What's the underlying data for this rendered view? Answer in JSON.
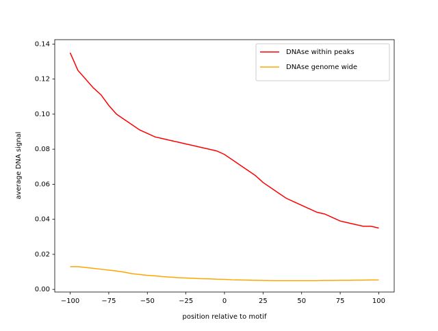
{
  "chart_data": {
    "type": "line",
    "xlabel": "position relative to motif",
    "ylabel": "average DNA signal",
    "x": [
      -100,
      -95,
      -90,
      -85,
      -80,
      -75,
      -70,
      -65,
      -60,
      -55,
      -50,
      -45,
      -40,
      -35,
      -30,
      -25,
      -20,
      -15,
      -10,
      -5,
      0,
      5,
      10,
      15,
      20,
      25,
      30,
      35,
      40,
      45,
      50,
      55,
      60,
      65,
      70,
      75,
      80,
      85,
      90,
      95,
      100
    ],
    "series": [
      {
        "name": "DNAse within peaks",
        "color": "#ff0000",
        "values": [
          0.135,
          0.125,
          0.12,
          0.115,
          0.111,
          0.105,
          0.1,
          0.097,
          0.094,
          0.091,
          0.089,
          0.087,
          0.086,
          0.085,
          0.084,
          0.083,
          0.082,
          0.081,
          0.08,
          0.079,
          0.077,
          0.074,
          0.071,
          0.068,
          0.065,
          0.061,
          0.058,
          0.055,
          0.052,
          0.05,
          0.048,
          0.046,
          0.044,
          0.043,
          0.041,
          0.039,
          0.038,
          0.037,
          0.036,
          0.036,
          0.035
        ]
      },
      {
        "name": "DNAse genome wide",
        "color": "#ffa500",
        "values": [
          0.013,
          0.013,
          0.0125,
          0.012,
          0.0115,
          0.011,
          0.0105,
          0.0098,
          0.009,
          0.0085,
          0.008,
          0.0077,
          0.0073,
          0.007,
          0.0067,
          0.0065,
          0.0063,
          0.0061,
          0.006,
          0.0058,
          0.0057,
          0.0055,
          0.0054,
          0.0053,
          0.0052,
          0.0051,
          0.005,
          0.005,
          0.005,
          0.005,
          0.005,
          0.005,
          0.005,
          0.0051,
          0.0051,
          0.0052,
          0.0052,
          0.0053,
          0.0053,
          0.0054,
          0.0054
        ]
      }
    ],
    "xlim": [
      -110,
      110
    ],
    "ylim": [
      -0.0015,
      0.1425
    ],
    "xticks": [
      {
        "value": -100,
        "label": "−100"
      },
      {
        "value": -75,
        "label": "−75"
      },
      {
        "value": -50,
        "label": "−50"
      },
      {
        "value": -25,
        "label": "−25"
      },
      0,
      25,
      50,
      75,
      100
    ],
    "yticks": [
      {
        "value": 0,
        "label": "0.00"
      },
      0.02,
      0.04,
      0.06,
      0.08,
      {
        "value": 0.1,
        "label": "0.10"
      },
      0.12,
      0.14
    ],
    "grid": false,
    "legend": "upper right"
  }
}
